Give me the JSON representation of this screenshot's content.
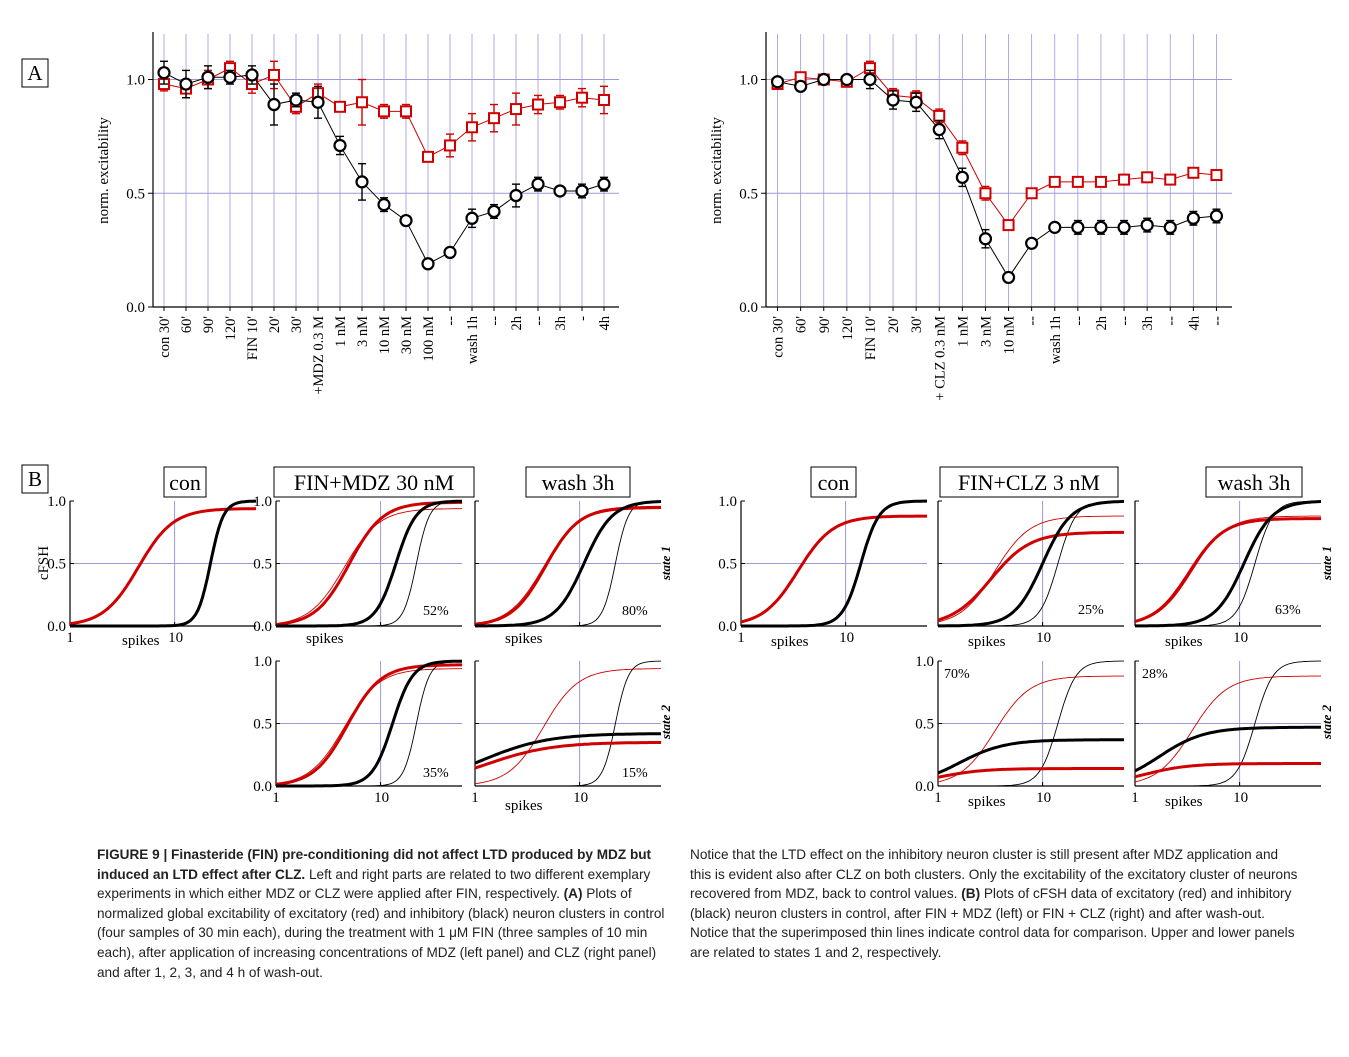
{
  "figure": {
    "panel_a_label": "A",
    "panel_b_label": "B",
    "colors": {
      "excitatory": "#d00000",
      "inhibitory": "#000000",
      "grid": "#9a9ad8",
      "axis": "#000000"
    }
  },
  "chart_data": [
    {
      "id": "A-left",
      "type": "line",
      "ylabel": "norm. excitability",
      "ylim": [
        0,
        1.2
      ],
      "yticks": [
        "0.0",
        "0.5",
        "1.0"
      ],
      "categories": [
        "con 30'",
        "60'",
        "90'",
        "120'",
        "FIN 10'",
        "20'",
        "30'",
        "+MDZ 0.3 M",
        "1 nM",
        "3 nM",
        "10 nM",
        "30 nM",
        "100 nM",
        "--",
        "wash 1h",
        "--",
        "2h",
        "--",
        "3h",
        "-",
        "4h"
      ],
      "series": [
        {
          "color": "red",
          "values": [
            0.98,
            0.96,
            1.0,
            1.05,
            0.98,
            1.02,
            0.88,
            0.94,
            0.88,
            0.9,
            0.86,
            0.86,
            0.66,
            0.71,
            0.79,
            0.83,
            0.87,
            0.89,
            0.9,
            0.92,
            0.91
          ],
          "errors": [
            0.03,
            0.04,
            0.04,
            0.03,
            0.04,
            0.06,
            0.03,
            0.04,
            0.02,
            0.1,
            0.03,
            0.03,
            0.02,
            0.05,
            0.06,
            0.06,
            0.07,
            0.04,
            0.03,
            0.04,
            0.06
          ]
        },
        {
          "color": "black",
          "values": [
            1.03,
            0.98,
            1.01,
            1.01,
            1.02,
            0.89,
            0.91,
            0.9,
            0.71,
            0.55,
            0.45,
            0.38,
            0.19,
            0.24,
            0.39,
            0.42,
            0.49,
            0.54,
            0.51,
            0.51,
            0.54
          ],
          "errors": [
            0.05,
            0.06,
            0.05,
            0.03,
            0.04,
            0.09,
            0.03,
            0.07,
            0.04,
            0.08,
            0.03,
            0.02,
            0.01,
            0.02,
            0.04,
            0.03,
            0.05,
            0.03,
            0.02,
            0.03,
            0.03
          ]
        }
      ]
    },
    {
      "id": "A-right",
      "type": "line",
      "ylabel": "norm. excitability",
      "ylim": [
        0,
        1.2
      ],
      "yticks": [
        "0.0",
        "0.5",
        "1.0"
      ],
      "categories": [
        "con 30'",
        "60'",
        "90'",
        "120'",
        "FIN 10'",
        "20'",
        "30'",
        "+ CLZ 0.3 nM",
        "1 nM",
        "3 nM",
        "10 nM",
        "--",
        "wash 1h",
        "--",
        "2h",
        "--",
        "3h",
        "--",
        "4h",
        "--"
      ],
      "series": [
        {
          "color": "red",
          "values": [
            0.98,
            1.01,
            1.0,
            0.99,
            1.05,
            0.93,
            0.92,
            0.84,
            0.7,
            0.5,
            0.36,
            0.5,
            0.55,
            0.55,
            0.55,
            0.56,
            0.57,
            0.56,
            0.59,
            0.58
          ],
          "errors": [
            0.02,
            0.02,
            0.02,
            0.02,
            0.03,
            0.03,
            0.03,
            0.03,
            0.03,
            0.03,
            0.02,
            0.01,
            0.01,
            0.01,
            0.01,
            0.01,
            0.01,
            0.01,
            0.01,
            0.01
          ]
        },
        {
          "color": "black",
          "values": [
            0.99,
            0.97,
            1.0,
            1.0,
            1.0,
            0.91,
            0.9,
            0.78,
            0.57,
            0.3,
            0.13,
            0.28,
            0.35,
            0.35,
            0.35,
            0.35,
            0.36,
            0.35,
            0.39,
            0.4
          ],
          "errors": [
            0.02,
            0.02,
            0.02,
            0.02,
            0.04,
            0.04,
            0.04,
            0.04,
            0.04,
            0.04,
            0.02,
            0.01,
            0.02,
            0.03,
            0.03,
            0.03,
            0.03,
            0.03,
            0.03,
            0.03
          ]
        }
      ]
    },
    {
      "id": "B-left-con",
      "type": "line",
      "title": "con",
      "ylabel": "cFSH",
      "xlabel": "spikes",
      "xscale": "log",
      "xticks": [
        "1",
        "10"
      ],
      "yticks": [
        "0.0",
        "0.5",
        "1.0"
      ],
      "curves": [
        {
          "color": "red",
          "width": "thick",
          "mid": 4.5,
          "k": 2.6,
          "ymax": 0.94
        },
        {
          "color": "black",
          "width": "thick",
          "mid": 22,
          "k": 7,
          "ymax": 1.0
        }
      ]
    },
    {
      "id": "B-left-mdz-s1",
      "type": "line",
      "title": "FIN+MDZ 30 nM",
      "percent": "52%",
      "state": "state 1",
      "xlabel": "spikes",
      "yticks": [
        "0.0",
        "0.5",
        "1.0"
      ],
      "curves": [
        {
          "color": "red",
          "width": "thin",
          "mid": 4.5,
          "k": 2.6,
          "ymax": 0.94
        },
        {
          "color": "black",
          "width": "thin",
          "mid": 22,
          "k": 7,
          "ymax": 1.0
        },
        {
          "color": "red",
          "width": "thick",
          "mid": 5.0,
          "k": 2.7,
          "ymax": 0.99
        },
        {
          "color": "black",
          "width": "thick",
          "mid": 14,
          "k": 4.5,
          "ymax": 1.0
        }
      ]
    },
    {
      "id": "B-left-wash-s1",
      "type": "line",
      "title": "wash 3h",
      "percent": "80%",
      "state": "state 1",
      "xlabel": "spikes",
      "curves": [
        {
          "color": "red",
          "width": "thin",
          "mid": 4.5,
          "k": 2.6,
          "ymax": 0.94
        },
        {
          "color": "black",
          "width": "thin",
          "mid": 22,
          "k": 7,
          "ymax": 1.0
        },
        {
          "color": "red",
          "width": "thick",
          "mid": 4.7,
          "k": 2.7,
          "ymax": 0.95
        },
        {
          "color": "black",
          "width": "thick",
          "mid": 11,
          "k": 3.2,
          "ymax": 1.0
        }
      ]
    },
    {
      "id": "B-left-mdz-s2",
      "type": "line",
      "percent": "35%",
      "xlabel": "",
      "xticks": [
        "1",
        "10"
      ],
      "yticks": [
        "0.0",
        "0.5",
        "1.0"
      ],
      "curves": [
        {
          "color": "red",
          "width": "thin",
          "mid": 4.5,
          "k": 2.6,
          "ymax": 0.94
        },
        {
          "color": "black",
          "width": "thin",
          "mid": 22,
          "k": 7,
          "ymax": 1.0
        },
        {
          "color": "red",
          "width": "thick",
          "mid": 4.8,
          "k": 2.7,
          "ymax": 0.97
        },
        {
          "color": "black",
          "width": "thick",
          "mid": 13,
          "k": 4.5,
          "ymax": 1.0
        }
      ]
    },
    {
      "id": "B-left-wash-s2",
      "type": "line",
      "percent": "15%",
      "state": "state 2",
      "xlabel": "spikes",
      "xticks": [
        "1",
        "10"
      ],
      "curves": [
        {
          "color": "red",
          "width": "thin",
          "mid": 4.5,
          "k": 2.6,
          "ymax": 0.94
        },
        {
          "color": "black",
          "width": "thin",
          "mid": 22,
          "k": 7,
          "ymax": 1.0
        },
        {
          "color": "red",
          "width": "thick",
          "mid": 1.3,
          "k": 1.4,
          "ymax": 0.35
        },
        {
          "color": "black",
          "width": "thick",
          "mid": 1.2,
          "k": 1.4,
          "ymax": 0.42
        }
      ]
    },
    {
      "id": "B-right-con",
      "type": "line",
      "title": "con",
      "xlabel": "spikes",
      "xticks": [
        "1",
        "10"
      ],
      "yticks": [
        "0.0",
        "0.5",
        "1.0"
      ],
      "curves": [
        {
          "color": "red",
          "width": "thick",
          "mid": 3.5,
          "k": 2.6,
          "ymax": 0.88
        },
        {
          "color": "black",
          "width": "thick",
          "mid": 14,
          "k": 5,
          "ymax": 1.0
        }
      ]
    },
    {
      "id": "B-right-clz-s1",
      "type": "line",
      "title": "FIN+CLZ 3 nM",
      "percent": "25%",
      "xlabel": "spikes",
      "xticks": [
        "10"
      ],
      "curves": [
        {
          "color": "red",
          "width": "thin",
          "mid": 3.5,
          "k": 2.6,
          "ymax": 0.88
        },
        {
          "color": "black",
          "width": "thin",
          "mid": 14,
          "k": 5,
          "ymax": 1.0
        },
        {
          "color": "red",
          "width": "thick",
          "mid": 3.2,
          "k": 2.3,
          "ymax": 0.75
        },
        {
          "color": "black",
          "width": "thick",
          "mid": 10,
          "k": 3.2,
          "ymax": 1.0
        }
      ]
    },
    {
      "id": "B-right-wash-s1",
      "type": "line",
      "title": "wash 3h",
      "percent": "63%",
      "state": "state 1",
      "xlabel": "spikes",
      "xticks": [
        "10"
      ],
      "curves": [
        {
          "color": "red",
          "width": "thin",
          "mid": 3.5,
          "k": 2.6,
          "ymax": 0.88
        },
        {
          "color": "black",
          "width": "thin",
          "mid": 14,
          "k": 5,
          "ymax": 1.0
        },
        {
          "color": "red",
          "width": "thick",
          "mid": 3.3,
          "k": 2.6,
          "ymax": 0.86
        },
        {
          "color": "black",
          "width": "thick",
          "mid": 11,
          "k": 3.2,
          "ymax": 1.0
        }
      ]
    },
    {
      "id": "B-right-clz-s2",
      "type": "line",
      "percent": "70%",
      "xlabel": "spikes",
      "xticks": [
        "1",
        "10"
      ],
      "yticks": [
        "0.0",
        "0.5",
        "1.0"
      ],
      "curves": [
        {
          "color": "red",
          "width": "thin",
          "mid": 3.5,
          "k": 2.6,
          "ymax": 0.88
        },
        {
          "color": "black",
          "width": "thin",
          "mid": 14,
          "k": 5,
          "ymax": 1.0
        },
        {
          "color": "red",
          "width": "thick",
          "mid": 1.0,
          "k": 2.0,
          "ymax": 0.14
        },
        {
          "color": "black",
          "width": "thick",
          "mid": 1.6,
          "k": 2.0,
          "ymax": 0.37
        }
      ]
    },
    {
      "id": "B-right-wash-s2",
      "type": "line",
      "percent": "28%",
      "state": "state 2",
      "xlabel": "spikes",
      "xticks": [
        "1",
        "10"
      ],
      "curves": [
        {
          "color": "red",
          "width": "thin",
          "mid": 3.5,
          "k": 2.6,
          "ymax": 0.88
        },
        {
          "color": "black",
          "width": "thin",
          "mid": 14,
          "k": 5,
          "ymax": 1.0
        },
        {
          "color": "red",
          "width": "thick",
          "mid": 1.2,
          "k": 2.0,
          "ymax": 0.18
        },
        {
          "color": "black",
          "width": "thick",
          "mid": 1.7,
          "k": 2.0,
          "ymax": 0.47
        }
      ]
    }
  ],
  "caption": {
    "left_bold": "FIGURE 9 | Finasteride (FIN) pre-conditioning did not affect LTD produced by MDZ but induced an LTD effect after CLZ.",
    "left_text1": " Left and right parts are related to two different exemplary experiments in which either MDZ or CLZ were applied after FIN, respectively. ",
    "left_a": "(A)",
    "left_text2": " Plots of normalized global excitability of excitatory (red) and inhibitory (black) neuron clusters in control (four samples of 30 min each), during the treatment with 1 μM FIN (three samples of 10 min each), after application of increasing concentrations of MDZ (left panel) and CLZ (right panel) and after 1, 2, 3, and 4 h of wash-out.",
    "right_text1": "Notice that the LTD effect on the inhibitory neuron cluster is still present after MDZ application and this is evident also after CLZ on both clusters. Only the excitability of the excitatory cluster of neurons recovered from MDZ, back to control values. ",
    "right_b": "(B)",
    "right_text2": " Plots of cFSH data of excitatory (red) and inhibitory (black) neuron clusters in control, after FIN + MDZ (left) or FIN + CLZ (right) and after wash-out. Notice that the superimposed thin lines indicate control data for comparison. Upper and lower panels are related to states 1 and 2, respectively."
  }
}
